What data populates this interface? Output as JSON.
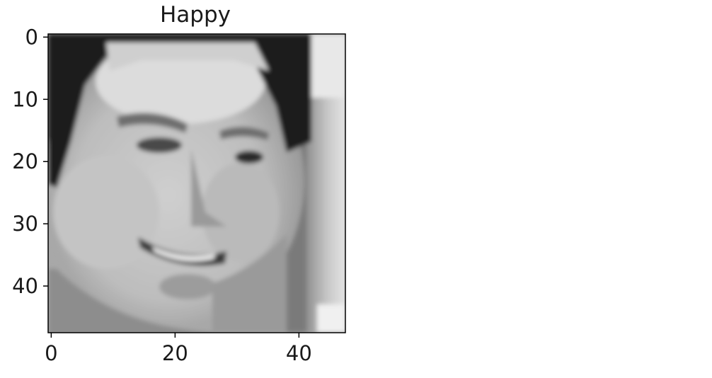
{
  "figure": {
    "title": "Happy",
    "image_description_semantic": "face-photo",
    "x_ticks": [
      {
        "value": 0,
        "label": "0"
      },
      {
        "value": 20,
        "label": "20"
      },
      {
        "value": 40,
        "label": "40"
      }
    ],
    "y_ticks": [
      {
        "value": 0,
        "label": "0"
      },
      {
        "value": 10,
        "label": "10"
      },
      {
        "value": 20,
        "label": "20"
      },
      {
        "value": 30,
        "label": "30"
      },
      {
        "value": 40,
        "label": "40"
      }
    ],
    "image_size": [
      48,
      48
    ],
    "colormap": "gray",
    "colors": {
      "axis": "#000000",
      "text": "#1a1a1a",
      "background": "#ffffff"
    }
  }
}
